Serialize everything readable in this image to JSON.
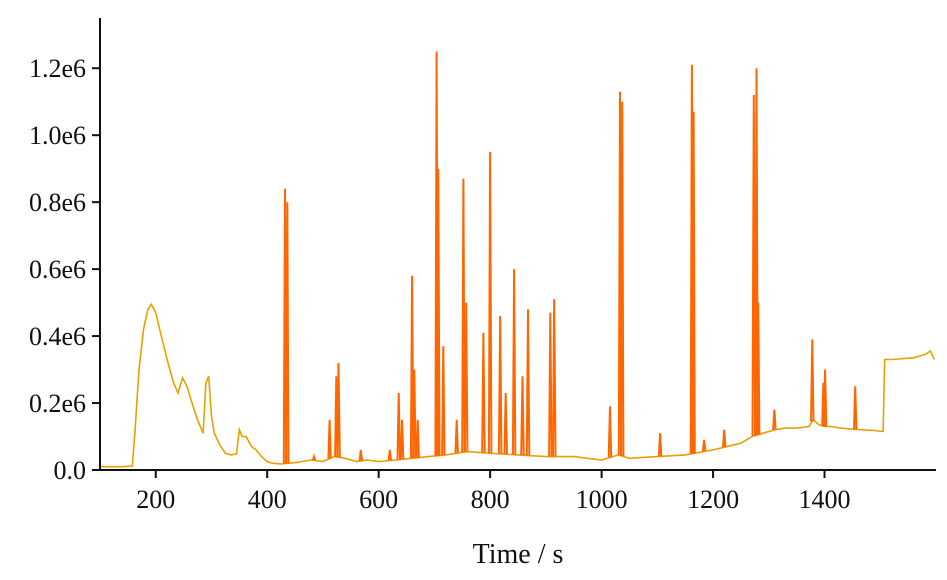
{
  "chart_data": {
    "type": "line",
    "title": "",
    "xlabel": "Time / s",
    "ylabel": "",
    "xlim": [
      100,
      1600
    ],
    "ylim": [
      0,
      1350000
    ],
    "x_ticks": [
      200,
      400,
      600,
      800,
      1000,
      1200,
      1400
    ],
    "x_tick_labels": [
      "200",
      "400",
      "600",
      "800",
      "1000",
      "1200",
      "1400"
    ],
    "y_ticks": [
      0,
      200000,
      400000,
      600000,
      800000,
      1000000,
      1200000
    ],
    "y_tick_labels": [
      "0.0",
      "0.2e6",
      "0.4e6",
      "0.6e6",
      "0.8e6",
      "1.0e6",
      "1.2e6"
    ],
    "grid": false,
    "legend": "none",
    "series": [
      {
        "color": "#E8A000",
        "x": [
          100,
          120,
          140,
          158,
          163,
          170,
          178,
          186,
          192,
          200,
          210,
          222,
          232,
          240,
          248,
          256,
          265,
          275,
          285,
          290,
          295,
          300,
          305,
          315,
          325,
          335,
          345,
          350,
          355,
          362,
          372,
          380,
          390,
          400,
          410,
          425,
          450,
          480,
          500,
          520,
          540,
          560,
          580,
          600,
          630,
          660,
          690,
          720,
          760,
          800,
          850,
          900,
          950,
          1000,
          1030,
          1050,
          1100,
          1150,
          1200,
          1250,
          1270,
          1290,
          1310,
          1330,
          1350,
          1372,
          1380,
          1390,
          1400,
          1410,
          1430,
          1450,
          1470,
          1490,
          1505,
          1508,
          1520,
          1560,
          1580,
          1590,
          1597
        ],
        "y": [
          10000,
          10000,
          10000,
          12000,
          120000,
          300000,
          420000,
          480000,
          495000,
          470000,
          400000,
          320000,
          260000,
          230000,
          275000,
          250000,
          200000,
          150000,
          110000,
          260000,
          280000,
          160000,
          110000,
          75000,
          50000,
          45000,
          48000,
          120000,
          100000,
          100000,
          70000,
          60000,
          40000,
          25000,
          20000,
          18000,
          22000,
          30000,
          25000,
          40000,
          35000,
          25000,
          30000,
          25000,
          30000,
          35000,
          40000,
          45000,
          55000,
          50000,
          45000,
          40000,
          40000,
          30000,
          45000,
          35000,
          40000,
          45000,
          60000,
          80000,
          100000,
          110000,
          120000,
          125000,
          125000,
          130000,
          150000,
          135000,
          130000,
          130000,
          125000,
          122000,
          120000,
          118000,
          115000,
          330000,
          330000,
          335000,
          345000,
          355000,
          330000
        ]
      },
      {
        "color": "#FF6600",
        "x": [
          432,
          436,
          484,
          512,
          524,
          528,
          568,
          620,
          636,
          642,
          660,
          664,
          670,
          704,
          707,
          716,
          740,
          752,
          757,
          788,
          800,
          818,
          828,
          843,
          858,
          868,
          908,
          915,
          1015,
          1033,
          1037,
          1105,
          1162,
          1165,
          1184,
          1220,
          1273,
          1278,
          1281,
          1310,
          1378,
          1398,
          1401,
          1455
        ],
        "y": [
          840000,
          800000,
          40000,
          150000,
          280000,
          320000,
          60000,
          60000,
          230000,
          150000,
          580000,
          300000,
          150000,
          1250000,
          900000,
          370000,
          150000,
          870000,
          500000,
          410000,
          950000,
          460000,
          230000,
          600000,
          280000,
          480000,
          470000,
          510000,
          190000,
          1130000,
          1100000,
          110000,
          1210000,
          1070000,
          90000,
          120000,
          1120000,
          1200000,
          500000,
          180000,
          390000,
          260000,
          300000,
          250000
        ]
      }
    ]
  }
}
